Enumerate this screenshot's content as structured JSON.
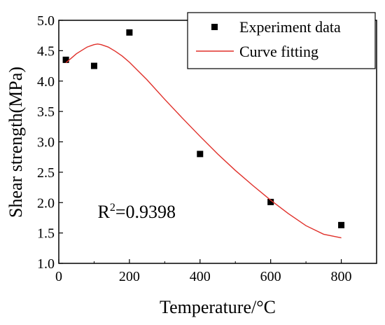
{
  "chart_data": {
    "type": "scatter",
    "title": "",
    "xlabel": "Temperature/°C",
    "ylabel": "Shear strength(MPa)",
    "xlim": [
      0,
      900
    ],
    "ylim": [
      1.0,
      5.0
    ],
    "xticks": [
      0,
      200,
      400,
      600,
      800
    ],
    "xtick_labels": [
      "0",
      "200",
      "400",
      "600",
      "800"
    ],
    "yticks": [
      1.0,
      1.5,
      2.0,
      2.5,
      3.0,
      3.5,
      4.0,
      4.5,
      5.0
    ],
    "ytick_labels": [
      "1.0",
      "1.5",
      "2.0",
      "2.5",
      "3.0",
      "3.5",
      "4.0",
      "4.5",
      "5.0"
    ],
    "grid": false,
    "legend_position": "top-right",
    "series": [
      {
        "name": "Experiment data",
        "kind": "scatter",
        "marker": "square",
        "color": "#000000",
        "x": [
          20,
          100,
          200,
          400,
          600,
          800
        ],
        "y": [
          4.35,
          4.25,
          4.8,
          2.8,
          2.01,
          1.63
        ]
      },
      {
        "name": "Curve fitting",
        "kind": "line",
        "color": "#e0302a",
        "x": [
          20,
          50,
          80,
          100,
          110,
          120,
          140,
          160,
          180,
          200,
          250,
          300,
          350,
          400,
          450,
          500,
          550,
          600,
          650,
          700,
          750,
          800
        ],
        "y": [
          4.3,
          4.45,
          4.56,
          4.6,
          4.61,
          4.6,
          4.56,
          4.49,
          4.41,
          4.31,
          4.02,
          3.7,
          3.39,
          3.09,
          2.8,
          2.53,
          2.28,
          2.04,
          1.82,
          1.62,
          1.48,
          1.42
        ]
      }
    ],
    "annotation": {
      "base": "R",
      "sup": "2",
      "rest": "=0.9398",
      "x": 110,
      "y": 1.75
    }
  }
}
